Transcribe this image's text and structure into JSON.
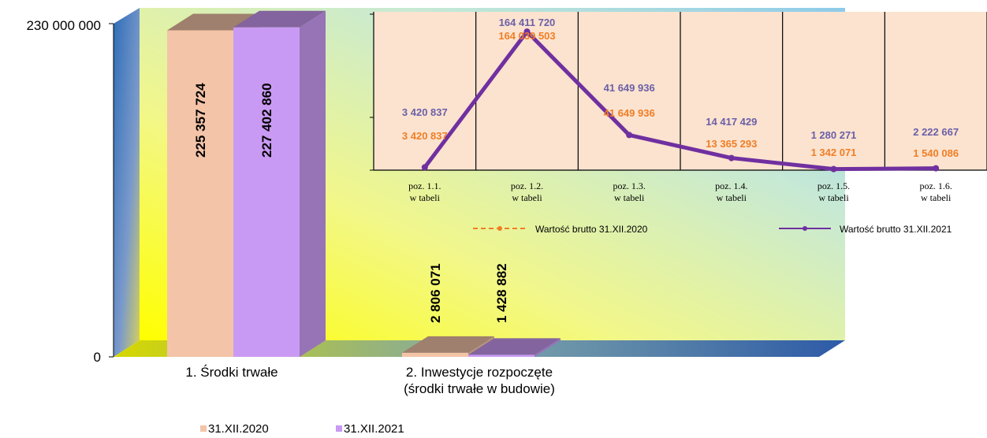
{
  "main_chart": {
    "y_axis": {
      "max_label": "230 000 000",
      "min_label": "0",
      "ylim": [
        0,
        230000000
      ]
    },
    "categories": [
      {
        "label_lines": [
          "1. Środki trwałe"
        ]
      },
      {
        "label_lines": [
          "2. Inwestycje rozpoczęte",
          "(środki trwałe w budowie)"
        ]
      }
    ],
    "legend": [
      {
        "label": "31.XII.2020",
        "color": "#f4c4a8"
      },
      {
        "label": "31.XII.2021",
        "color": "#c99af3"
      }
    ]
  },
  "chart_data": [
    {
      "type": "bar",
      "categories": [
        "1. Środki trwałe",
        "2. Inwestycje rozpoczęte (środki trwałe w budowie)"
      ],
      "series": [
        {
          "name": "31.XII.2020",
          "values": [
            225357724,
            2806071
          ],
          "labels": [
            "225 357 724",
            "2 806 071"
          ],
          "color": "#f4c4a8"
        },
        {
          "name": "31.XII.2021",
          "values": [
            227402860,
            1428882
          ],
          "labels": [
            "227 402 860",
            "1 428 882"
          ],
          "color": "#c99af3"
        }
      ],
      "ylim": [
        0,
        230000000
      ],
      "grid": false,
      "legend_position": "bottom-left"
    },
    {
      "type": "line",
      "categories": [
        [
          "poz. 1.1.",
          "w tabeli"
        ],
        [
          "poz. 1.2.",
          "w tabeli"
        ],
        [
          "poz. 1.3.",
          "w tabeli"
        ],
        [
          "poz. 1.4.",
          "w tabeli"
        ],
        [
          "poz. 1.5.",
          "w tabeli"
        ],
        [
          "poz. 1.6.",
          "w tabeli"
        ]
      ],
      "series": [
        {
          "name": "Wartość brutto 31.XII.2020",
          "values": [
            3420837,
            164039503,
            41649936,
            13365293,
            1342071,
            1540086
          ],
          "labels": [
            "3 420 837",
            "164 039 503",
            "41 649 936",
            "13 365 293",
            "1 342 071",
            "1 540 086"
          ],
          "color": "#f07e26",
          "style": "dashed"
        },
        {
          "name": "Wartość brutto 31.XII.2021",
          "values": [
            3420837,
            164411720,
            41649936,
            14417429,
            1280271,
            2222667
          ],
          "labels": [
            "3 420 837",
            "164 411 720",
            "41 649 936",
            "14 417 429",
            "1 280 271",
            "2 222 667"
          ],
          "color": "#7030a0",
          "style": "solid"
        }
      ],
      "ylim": [
        0,
        200000000
      ],
      "grid": false,
      "legend_position": "bottom"
    }
  ]
}
